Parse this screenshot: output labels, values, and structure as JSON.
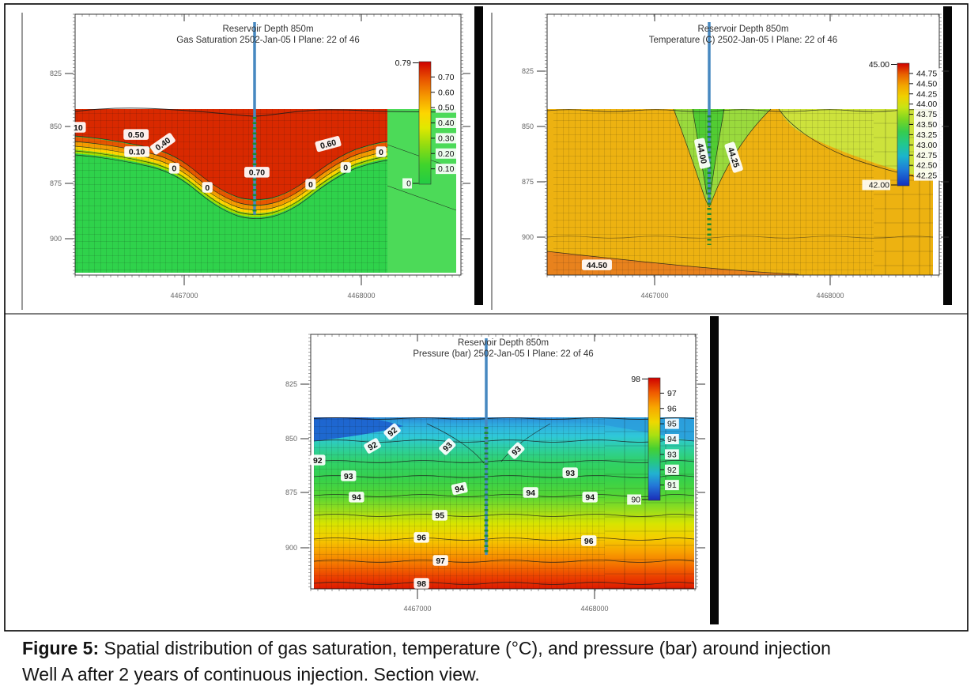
{
  "caption": {
    "label": "Figure 5:",
    "line1": "Spatial distribution of gas saturation, temperature (°C), and pressure (bar) around injection",
    "line2": "Well A after 2 years of continuous injection. Section view."
  },
  "chart_data": [
    {
      "id": "gas-saturation",
      "type": "heatmap",
      "title_line1": "Reservoir Depth 850m",
      "title_line2": "Gas Saturation 2502-Jan-05 I Plane: 22 of 46",
      "x_axis_ticks": [
        "4467000",
        "4468000"
      ],
      "y_axis_ticks": [
        "825",
        "850",
        "875",
        "900"
      ],
      "colorbar": {
        "top": "0.79",
        "labels": [
          "0.70",
          "0.60",
          "0.50",
          "0.40",
          "0.30",
          "0.20",
          "0.10"
        ],
        "bottom": "0"
      },
      "colorbar_colors": [
        [
          0,
          "#cf0000"
        ],
        [
          0.14,
          "#e85200"
        ],
        [
          0.28,
          "#f59800"
        ],
        [
          0.42,
          "#fdd600"
        ],
        [
          0.54,
          "#e0e800"
        ],
        [
          0.68,
          "#94dc10"
        ],
        [
          0.84,
          "#40d42c"
        ],
        [
          1,
          "#22cc44"
        ]
      ],
      "field_colors": {
        "body": "#2fd24b",
        "right_body": "#4cda58",
        "red": "#d92900",
        "bands": [
          "#e85800",
          "#f59b00",
          "#ffd400",
          "#a8e000"
        ]
      },
      "well_color": "#4788c0",
      "contour_labels": [
        {
          "text": "10",
          "fx": 0.008,
          "fy": 0.111,
          "rot": 0
        },
        {
          "text": "0.50",
          "fx": 0.16,
          "fy": 0.155,
          "rot": 0
        },
        {
          "text": "0.40",
          "fx": 0.23,
          "fy": 0.212,
          "rot": -35
        },
        {
          "text": "0.10",
          "fx": 0.162,
          "fy": 0.26,
          "rot": 0
        },
        {
          "text": "0",
          "fx": 0.26,
          "fy": 0.362,
          "rot": 0
        },
        {
          "text": "0",
          "fx": 0.347,
          "fy": 0.478,
          "rot": 0
        },
        {
          "text": "0.70",
          "fx": 0.477,
          "fy": 0.386,
          "rot": 0
        },
        {
          "text": "0.60",
          "fx": 0.664,
          "fy": 0.213,
          "rot": -15
        },
        {
          "text": "0",
          "fx": 0.618,
          "fy": 0.459,
          "rot": 0
        },
        {
          "text": "0",
          "fx": 0.71,
          "fy": 0.357,
          "rot": 0
        },
        {
          "text": "0",
          "fx": 0.803,
          "fy": 0.261,
          "rot": 0
        }
      ]
    },
    {
      "id": "temperature",
      "type": "heatmap",
      "title_line1": "Reservoir Depth 850m",
      "title_line2": "Temperature (C) 2502-Jan-05 I Plane: 22 of 46",
      "x_axis_ticks": [
        "4467000",
        "4468000"
      ],
      "y_axis_ticks": [
        "825",
        "850",
        "875",
        "900"
      ],
      "colorbar": {
        "top": "45.00",
        "labels": [
          "44.75",
          "44.50",
          "44.25",
          "44.00",
          "43.75",
          "43.50",
          "43.25",
          "43.00",
          "42.75",
          "42.50",
          "42.25"
        ],
        "bottom": "42.00"
      },
      "colorbar_colors": [
        [
          0,
          "#cf0000"
        ],
        [
          0.09,
          "#e86000"
        ],
        [
          0.18,
          "#f2a400"
        ],
        [
          0.27,
          "#f0d000"
        ],
        [
          0.36,
          "#c8e414"
        ],
        [
          0.46,
          "#7ad622"
        ],
        [
          0.56,
          "#35cc4e"
        ],
        [
          0.66,
          "#22c88e"
        ],
        [
          0.76,
          "#1cb4cc"
        ],
        [
          0.87,
          "#1f7ad8"
        ],
        [
          1,
          "#1330c0"
        ]
      ],
      "field_colors": {
        "body": "#edb211",
        "wedge": "#cde23c",
        "cone_outer": "#9ada3d",
        "cone_inner": "#52cc33",
        "bottom_band": "#e8821d"
      },
      "well_color": "#4788c0",
      "contour_labels": [
        {
          "text": "44.00",
          "fx": 0.402,
          "fy": 0.271,
          "rot": 78
        },
        {
          "text": "44.25",
          "fx": 0.484,
          "fy": 0.295,
          "rot": 72
        },
        {
          "text": "44.50",
          "fx": 0.129,
          "fy": 0.952,
          "rot": 0
        }
      ]
    },
    {
      "id": "pressure",
      "type": "heatmap",
      "title_line1": "Reservoir Depth 850m",
      "title_line2": "Pressure (bar) 2502-Jan-05 I Plane: 22 of 46",
      "x_axis_ticks": [
        "4467000",
        "4468000"
      ],
      "y_axis_ticks": [
        "825",
        "850",
        "875",
        "900"
      ],
      "colorbar": {
        "top": "98",
        "labels": [
          "97",
          "96",
          "95",
          "94",
          "93",
          "92",
          "91"
        ],
        "bottom": "90"
      },
      "colorbar_colors": [
        [
          0,
          "#cf0000"
        ],
        [
          0.12,
          "#ef5a00"
        ],
        [
          0.24,
          "#f8a600"
        ],
        [
          0.36,
          "#efd800"
        ],
        [
          0.47,
          "#a8e012"
        ],
        [
          0.58,
          "#44d033"
        ],
        [
          0.68,
          "#26c87e"
        ],
        [
          0.78,
          "#22b2d0"
        ],
        [
          0.88,
          "#2377d8"
        ],
        [
          1,
          "#1a2cb8"
        ]
      ],
      "field_colors": {
        "corner_left": "#1e63cf",
        "corner_right": "#2b9fdc",
        "bands": [
          [
            0,
            "#2a8ad8"
          ],
          [
            0.05,
            "#2fb0e0"
          ],
          [
            0.11,
            "#2fc8d8"
          ],
          [
            0.18,
            "#2ecfa0"
          ],
          [
            0.26,
            "#30d168"
          ],
          [
            0.36,
            "#37d14b"
          ],
          [
            0.46,
            "#55d634"
          ],
          [
            0.54,
            "#97dd1d"
          ],
          [
            0.62,
            "#d8e400"
          ],
          [
            0.7,
            "#f4cf00"
          ],
          [
            0.78,
            "#f8a300"
          ],
          [
            0.86,
            "#f47200"
          ],
          [
            0.93,
            "#ec4000"
          ],
          [
            1,
            "#dc1800"
          ]
        ]
      },
      "well_color": "#4788c0",
      "contour_labels": [
        {
          "text": "92",
          "fx": 0.206,
          "fy": 0.083,
          "rot": -40
        },
        {
          "text": "92",
          "fx": 0.154,
          "fy": 0.166,
          "rot": -30
        },
        {
          "text": "92",
          "fx": 0.01,
          "fy": 0.249,
          "rot": 0
        },
        {
          "text": "93",
          "fx": 0.351,
          "fy": 0.171,
          "rot": -45
        },
        {
          "text": "93",
          "fx": 0.532,
          "fy": 0.194,
          "rot": -45
        },
        {
          "text": "93",
          "fx": 0.091,
          "fy": 0.341,
          "rot": 0
        },
        {
          "text": "93",
          "fx": 0.674,
          "fy": 0.323,
          "rot": 0
        },
        {
          "text": "94",
          "fx": 0.383,
          "fy": 0.415,
          "rot": -12
        },
        {
          "text": "94",
          "fx": 0.112,
          "fy": 0.465,
          "rot": 0
        },
        {
          "text": "94",
          "fx": 0.57,
          "fy": 0.438,
          "rot": 0
        },
        {
          "text": "94",
          "fx": 0.726,
          "fy": 0.465,
          "rot": 0
        },
        {
          "text": "95",
          "fx": 0.331,
          "fy": 0.571,
          "rot": 0
        },
        {
          "text": "96",
          "fx": 0.283,
          "fy": 0.7,
          "rot": 0
        },
        {
          "text": "96",
          "fx": 0.723,
          "fy": 0.719,
          "rot": 0
        },
        {
          "text": "97",
          "fx": 0.333,
          "fy": 0.834,
          "rot": 0
        },
        {
          "text": "98",
          "fx": 0.283,
          "fy": 0.968,
          "rot": 0
        }
      ]
    }
  ]
}
